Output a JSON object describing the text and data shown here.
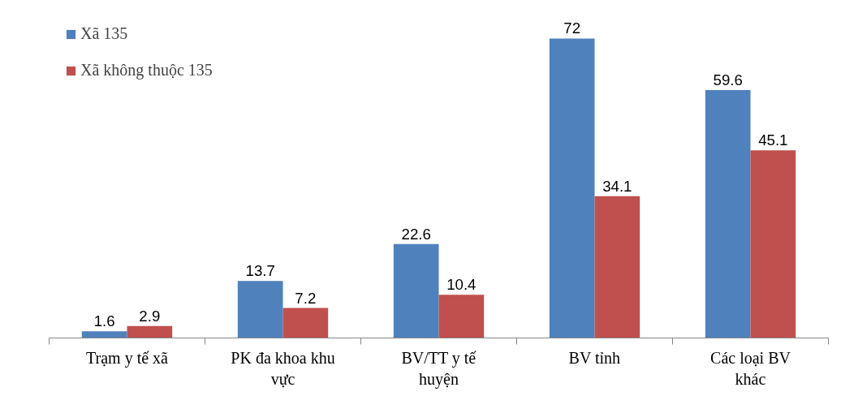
{
  "chart_data": {
    "type": "bar",
    "categories": [
      "Trạm y tế xã",
      "PK đa khoa khu vực",
      "BV/TT y tế huyện",
      "BV tỉnh",
      "Các loại BV khác"
    ],
    "series": [
      {
        "name": "Xã 135",
        "color": "#4f81bd",
        "values": [
          1.6,
          13.7,
          22.6,
          72,
          59.6
        ]
      },
      {
        "name": "Xã không thuộc 135",
        "color": "#c0504d",
        "values": [
          2.9,
          7.2,
          10.4,
          34.1,
          45.1
        ]
      }
    ],
    "data_labels": true,
    "legend": "top left",
    "grid": false,
    "tick_labels": "x"
  }
}
